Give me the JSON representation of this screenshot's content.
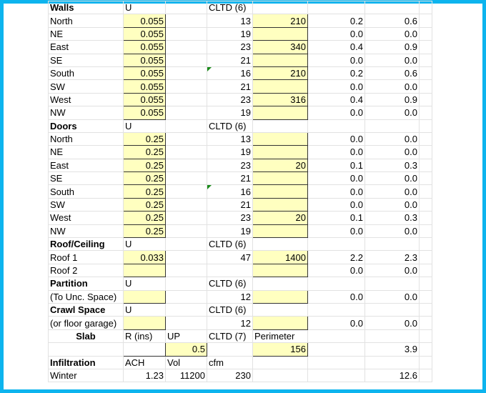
{
  "colors": {
    "frame": "#0db4ee",
    "input_fill": "#ffffc0",
    "comment_marker": "#1a8a1a"
  },
  "rows": [
    [
      {
        "t": "Walls",
        "b": 1
      },
      {
        "t": "U"
      },
      {},
      {
        "t": "CLTD (6)"
      },
      {},
      {},
      {},
      {}
    ],
    [
      {
        "t": "North"
      },
      {
        "t": "0.055",
        "y": 1,
        "n": 1
      },
      {},
      {
        "t": "13",
        "n": 1
      },
      {
        "t": "210",
        "y": 1,
        "n": 1
      },
      {
        "t": "0.2",
        "n": 1
      },
      {
        "t": "0.6",
        "n": 1
      },
      {}
    ],
    [
      {
        "t": "NE"
      },
      {
        "t": "0.055",
        "y": 1,
        "n": 1
      },
      {},
      {
        "t": "19",
        "n": 1
      },
      {
        "y": 1
      },
      {
        "t": "0.0",
        "n": 1
      },
      {
        "t": "0.0",
        "n": 1
      },
      {}
    ],
    [
      {
        "t": "East"
      },
      {
        "t": "0.055",
        "y": 1,
        "n": 1
      },
      {},
      {
        "t": "23",
        "n": 1
      },
      {
        "t": "340",
        "y": 1,
        "n": 1
      },
      {
        "t": "0.4",
        "n": 1
      },
      {
        "t": "0.9",
        "n": 1
      },
      {}
    ],
    [
      {
        "t": "SE"
      },
      {
        "t": "0.055",
        "y": 1,
        "n": 1
      },
      {},
      {
        "t": "21",
        "n": 1
      },
      {
        "y": 1
      },
      {
        "t": "0.0",
        "n": 1
      },
      {
        "t": "0.0",
        "n": 1
      },
      {}
    ],
    [
      {
        "t": "South"
      },
      {
        "t": "0.055",
        "y": 1,
        "n": 1
      },
      {},
      {
        "t": "16",
        "n": 1,
        "tri": 1
      },
      {
        "t": "210",
        "y": 1,
        "n": 1
      },
      {
        "t": "0.2",
        "n": 1
      },
      {
        "t": "0.6",
        "n": 1
      },
      {}
    ],
    [
      {
        "t": "SW"
      },
      {
        "t": "0.055",
        "y": 1,
        "n": 1
      },
      {},
      {
        "t": "21",
        "n": 1
      },
      {
        "y": 1
      },
      {
        "t": "0.0",
        "n": 1
      },
      {
        "t": "0.0",
        "n": 1
      },
      {}
    ],
    [
      {
        "t": "West"
      },
      {
        "t": "0.055",
        "y": 1,
        "n": 1
      },
      {},
      {
        "t": "23",
        "n": 1
      },
      {
        "t": "316",
        "y": 1,
        "n": 1
      },
      {
        "t": "0.4",
        "n": 1
      },
      {
        "t": "0.9",
        "n": 1
      },
      {}
    ],
    [
      {
        "t": "NW"
      },
      {
        "t": "0.055",
        "y": 1,
        "n": 1
      },
      {},
      {
        "t": "19",
        "n": 1
      },
      {
        "y": 1
      },
      {
        "t": "0.0",
        "n": 1
      },
      {
        "t": "0.0",
        "n": 1
      },
      {}
    ],
    [
      {
        "t": "Doors",
        "b": 1
      },
      {
        "t": "U"
      },
      {},
      {
        "t": "CLTD (6)"
      },
      {},
      {},
      {},
      {}
    ],
    [
      {
        "t": "North"
      },
      {
        "t": "0.25",
        "y": 1,
        "n": 1
      },
      {},
      {
        "t": "13",
        "n": 1
      },
      {
        "y": 1
      },
      {
        "t": "0.0",
        "n": 1
      },
      {
        "t": "0.0",
        "n": 1
      },
      {}
    ],
    [
      {
        "t": "NE"
      },
      {
        "t": "0.25",
        "y": 1,
        "n": 1
      },
      {},
      {
        "t": "19",
        "n": 1
      },
      {
        "y": 1
      },
      {
        "t": "0.0",
        "n": 1
      },
      {
        "t": "0.0",
        "n": 1
      },
      {}
    ],
    [
      {
        "t": "East"
      },
      {
        "t": "0.25",
        "y": 1,
        "n": 1
      },
      {},
      {
        "t": "23",
        "n": 1
      },
      {
        "t": "20",
        "y": 1,
        "n": 1
      },
      {
        "t": "0.1",
        "n": 1
      },
      {
        "t": "0.3",
        "n": 1
      },
      {}
    ],
    [
      {
        "t": "SE"
      },
      {
        "t": "0.25",
        "y": 1,
        "n": 1
      },
      {},
      {
        "t": "21",
        "n": 1
      },
      {
        "y": 1
      },
      {
        "t": "0.0",
        "n": 1
      },
      {
        "t": "0.0",
        "n": 1
      },
      {}
    ],
    [
      {
        "t": "South"
      },
      {
        "t": "0.25",
        "y": 1,
        "n": 1
      },
      {},
      {
        "t": "16",
        "n": 1,
        "tri": 1
      },
      {
        "y": 1
      },
      {
        "t": "0.0",
        "n": 1
      },
      {
        "t": "0.0",
        "n": 1
      },
      {}
    ],
    [
      {
        "t": "SW"
      },
      {
        "t": "0.25",
        "y": 1,
        "n": 1
      },
      {},
      {
        "t": "21",
        "n": 1
      },
      {
        "y": 1
      },
      {
        "t": "0.0",
        "n": 1
      },
      {
        "t": "0.0",
        "n": 1
      },
      {}
    ],
    [
      {
        "t": "West"
      },
      {
        "t": "0.25",
        "y": 1,
        "n": 1
      },
      {},
      {
        "t": "23",
        "n": 1
      },
      {
        "t": "20",
        "y": 1,
        "n": 1
      },
      {
        "t": "0.1",
        "n": 1
      },
      {
        "t": "0.3",
        "n": 1
      },
      {}
    ],
    [
      {
        "t": "NW"
      },
      {
        "t": "0.25",
        "y": 1,
        "n": 1
      },
      {},
      {
        "t": "19",
        "n": 1
      },
      {
        "y": 1
      },
      {
        "t": "0.0",
        "n": 1
      },
      {
        "t": "0.0",
        "n": 1
      },
      {}
    ],
    [
      {
        "t": "Roof/Ceiling",
        "b": 1
      },
      {
        "t": "U"
      },
      {},
      {
        "t": "CLTD (6)"
      },
      {},
      {},
      {},
      {}
    ],
    [
      {
        "t": "Roof 1"
      },
      {
        "t": "0.033",
        "y": 1,
        "n": 1
      },
      {},
      {
        "t": "47",
        "n": 1
      },
      {
        "t": "1400",
        "y": 1,
        "n": 1
      },
      {
        "t": "2.2",
        "n": 1
      },
      {
        "t": "2.3",
        "n": 1
      },
      {}
    ],
    [
      {
        "t": "Roof 2"
      },
      {
        "y": 1
      },
      {},
      {},
      {
        "y": 1
      },
      {
        "t": "0.0",
        "n": 1
      },
      {
        "t": "0.0",
        "n": 1
      },
      {}
    ],
    [
      {
        "t": "Partition",
        "b": 1
      },
      {
        "t": "U"
      },
      {},
      {
        "t": "CLTD (6)"
      },
      {},
      {},
      {},
      {}
    ],
    [
      {
        "t": "(To Unc. Space)"
      },
      {
        "y": 1
      },
      {},
      {
        "t": "12",
        "n": 1
      },
      {
        "y": 1
      },
      {
        "t": "0.0",
        "n": 1
      },
      {
        "t": "0.0",
        "n": 1
      },
      {}
    ],
    [
      {
        "t": "Crawl Space",
        "b": 1
      },
      {
        "t": "U"
      },
      {},
      {
        "t": "CLTD (6)"
      },
      {},
      {},
      {},
      {}
    ],
    [
      {
        "t": "(or floor garage)"
      },
      {
        "y": 1
      },
      {},
      {
        "t": "12",
        "n": 1
      },
      {
        "y": 1
      },
      {
        "t": "0.0",
        "n": 1
      },
      {
        "t": "0.0",
        "n": 1
      },
      {}
    ],
    [
      {
        "t": "Slab",
        "b": 1,
        "c": 1
      },
      {
        "t": "R (ins)"
      },
      {
        "t": "UP"
      },
      {
        "t": "CLTD (7)"
      },
      {
        "t": "Perimeter"
      },
      {},
      {},
      {}
    ],
    [
      {},
      {
        "w": 1
      },
      {
        "t": "0.5",
        "y": 1,
        "n": 1
      },
      {},
      {
        "t": "156",
        "y": 1,
        "n": 1
      },
      {},
      {
        "t": "3.9",
        "n": 1
      },
      {}
    ],
    [
      {
        "t": "Infiltration",
        "b": 1
      },
      {
        "t": "ACH"
      },
      {
        "t": "Vol"
      },
      {
        "t": "cfm"
      },
      {},
      {},
      {},
      {}
    ],
    [
      {
        "t": "Winter"
      },
      {
        "t": "1.23",
        "n": 1
      },
      {
        "t": "11200",
        "n": 1
      },
      {
        "t": "230",
        "n": 1
      },
      {},
      {},
      {
        "t": "12.6",
        "n": 1
      },
      {}
    ]
  ]
}
